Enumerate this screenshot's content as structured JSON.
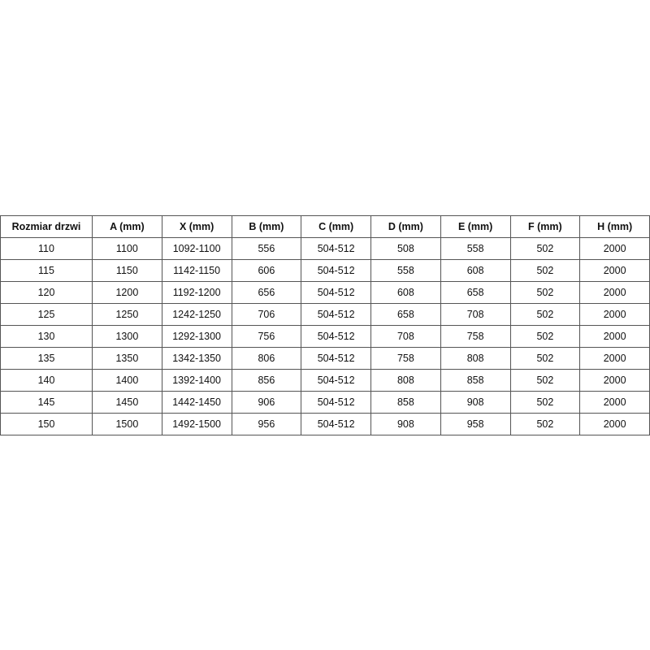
{
  "table": {
    "headers": [
      "Rozmiar drzwi",
      "A (mm)",
      "X (mm)",
      "B (mm)",
      "C (mm)",
      "D (mm)",
      "E (mm)",
      "F (mm)",
      "H (mm)"
    ],
    "rows": [
      [
        "110",
        "1100",
        "1092-1100",
        "556",
        "504-512",
        "508",
        "558",
        "502",
        "2000"
      ],
      [
        "115",
        "1150",
        "1142-1150",
        "606",
        "504-512",
        "558",
        "608",
        "502",
        "2000"
      ],
      [
        "120",
        "1200",
        "1192-1200",
        "656",
        "504-512",
        "608",
        "658",
        "502",
        "2000"
      ],
      [
        "125",
        "1250",
        "1242-1250",
        "706",
        "504-512",
        "658",
        "708",
        "502",
        "2000"
      ],
      [
        "130",
        "1300",
        "1292-1300",
        "756",
        "504-512",
        "708",
        "758",
        "502",
        "2000"
      ],
      [
        "135",
        "1350",
        "1342-1350",
        "806",
        "504-512",
        "758",
        "808",
        "502",
        "2000"
      ],
      [
        "140",
        "1400",
        "1392-1400",
        "856",
        "504-512",
        "808",
        "858",
        "502",
        "2000"
      ],
      [
        "145",
        "1450",
        "1442-1450",
        "906",
        "504-512",
        "858",
        "908",
        "502",
        "2000"
      ],
      [
        "150",
        "1500",
        "1492-1500",
        "956",
        "504-512",
        "908",
        "958",
        "502",
        "2000"
      ]
    ]
  }
}
